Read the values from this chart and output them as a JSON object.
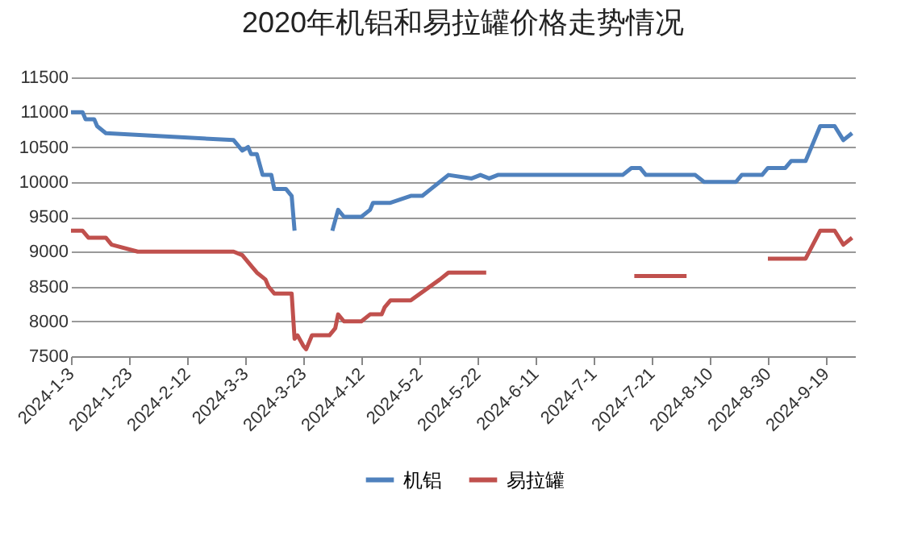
{
  "chart_data": {
    "type": "line",
    "title": "2020年机铝和易拉罐价格走势情况",
    "xlim": [
      "2024-01-03",
      "2024-09-29"
    ],
    "xticks": [
      {
        "value": "2024-01-03",
        "label": "2024-1-3"
      },
      {
        "value": "2024-01-23",
        "label": "2024-1-23"
      },
      {
        "value": "2024-02-12",
        "label": "2024-2-12"
      },
      {
        "value": "2024-03-03",
        "label": "2024-3-3"
      },
      {
        "value": "2024-03-23",
        "label": "2024-3-23"
      },
      {
        "value": "2024-04-12",
        "label": "2024-4-12"
      },
      {
        "value": "2024-05-02",
        "label": "2024-5-2"
      },
      {
        "value": "2024-05-22",
        "label": "2024-5-22"
      },
      {
        "value": "2024-06-11",
        "label": "2024-6-11"
      },
      {
        "value": "2024-07-01",
        "label": "2024-7-1"
      },
      {
        "value": "2024-07-21",
        "label": "2024-7-21"
      },
      {
        "value": "2024-08-10",
        "label": "2024-8-10"
      },
      {
        "value": "2024-08-30",
        "label": "2024-8-30"
      },
      {
        "value": "2024-09-19",
        "label": "2024-9-19"
      }
    ],
    "ylim": [
      7500,
      11500
    ],
    "yticks": [
      7500,
      8000,
      8500,
      9000,
      9500,
      10000,
      10500,
      11000,
      11500
    ],
    "grid": "y",
    "legend": "bottom",
    "line_style": "solid",
    "series": [
      {
        "name": "机铝",
        "color": "#4f81bd",
        "x": [
          "2024-01-03",
          "2024-01-07",
          "2024-01-08",
          "2024-01-11",
          "2024-01-12",
          "2024-01-15",
          "2024-02-28",
          "2024-03-02",
          "2024-03-04",
          "2024-03-05",
          "2024-03-07",
          "2024-03-09",
          "2024-03-12",
          "2024-03-13",
          "2024-03-17",
          "2024-03-19",
          "2024-03-20",
          "2024-03-27",
          "2024-04-02",
          "2024-04-04",
          "2024-04-06",
          "2024-04-12",
          "2024-04-15",
          "2024-04-16",
          "2024-04-22",
          "2024-04-29",
          "2024-05-03",
          "2024-05-06",
          "2024-05-09",
          "2024-05-12",
          "2024-05-20",
          "2024-05-23",
          "2024-05-26",
          "2024-05-29",
          "2024-06-04",
          "2024-07-11",
          "2024-07-14",
          "2024-07-17",
          "2024-07-19",
          "2024-08-05",
          "2024-08-08",
          "2024-08-19",
          "2024-08-21",
          "2024-08-28",
          "2024-08-30",
          "2024-09-05",
          "2024-09-07",
          "2024-09-12",
          "2024-09-15",
          "2024-09-17",
          "2024-09-22",
          "2024-09-25",
          "2024-09-28"
        ],
        "values": [
          11000,
          11000,
          10900,
          10900,
          10800,
          10700,
          10600,
          10450,
          10500,
          10400,
          10400,
          10100,
          10100,
          9900,
          9900,
          9800,
          9300,
          null,
          9300,
          9600,
          9500,
          9500,
          9600,
          9700,
          9700,
          9800,
          9800,
          9900,
          10000,
          10100,
          10050,
          10100,
          10050,
          10100,
          10100,
          10100,
          10200,
          10200,
          10100,
          10100,
          10000,
          10000,
          10100,
          10100,
          10200,
          10200,
          10300,
          10300,
          10600,
          10800,
          10800,
          10600,
          10700
        ]
      },
      {
        "name": "易拉罐",
        "color": "#c0504d",
        "x": [
          "2024-01-03",
          "2024-01-07",
          "2024-01-09",
          "2024-01-15",
          "2024-01-17",
          "2024-01-26",
          "2024-02-28",
          "2024-03-02",
          "2024-03-05",
          "2024-03-07",
          "2024-03-10",
          "2024-03-11",
          "2024-03-13",
          "2024-03-19",
          "2024-03-20",
          "2024-03-21",
          "2024-03-23",
          "2024-03-24",
          "2024-03-26",
          "2024-04-01",
          "2024-04-03",
          "2024-04-04",
          "2024-04-06",
          "2024-04-12",
          "2024-04-15",
          "2024-04-19",
          "2024-04-20",
          "2024-04-22",
          "2024-04-29",
          "2024-05-09",
          "2024-05-12",
          "2024-05-25",
          "2024-06-10",
          "2024-07-15",
          "2024-08-02",
          "2024-08-15",
          "2024-08-30",
          "2024-09-12",
          "2024-09-17",
          "2024-09-22",
          "2024-09-25",
          "2024-09-28"
        ],
        "values": [
          9300,
          9300,
          9200,
          9200,
          9100,
          9000,
          9000,
          8950,
          8800,
          8700,
          8600,
          8500,
          8400,
          8400,
          7750,
          7800,
          7650,
          7600,
          7800,
          7800,
          7900,
          8100,
          8000,
          8000,
          8100,
          8100,
          8200,
          8300,
          8300,
          8600,
          8700,
          8700,
          null,
          8650,
          8650,
          null,
          8900,
          8900,
          9300,
          9300,
          9100,
          9200
        ]
      }
    ]
  }
}
